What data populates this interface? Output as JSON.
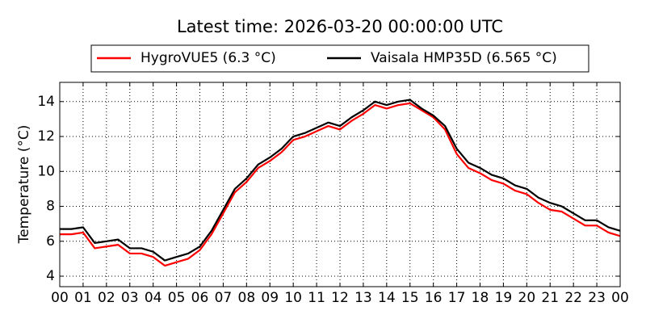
{
  "chart_data": {
    "type": "line",
    "title": "Latest time: 2026-03-20 00:00:00 UTC",
    "y_label": "Temperature (°C)",
    "x": [
      0,
      0.5,
      1,
      1.5,
      2,
      2.5,
      3,
      3.5,
      4,
      4.5,
      5,
      5.5,
      6,
      6.5,
      7,
      7.5,
      8,
      8.5,
      9,
      9.5,
      10,
      10.5,
      11,
      11.5,
      12,
      12.5,
      13,
      13.5,
      14,
      14.5,
      15,
      15.5,
      16,
      16.5,
      17,
      17.5,
      18,
      18.5,
      19,
      19.5,
      20,
      20.5,
      21,
      21.5,
      22,
      22.5,
      23,
      23.5,
      24
    ],
    "series": [
      {
        "name": "HygroVUE5 (6.3 °C)",
        "color": "#ff0000",
        "values": [
          6.4,
          6.4,
          6.5,
          5.6,
          5.7,
          5.8,
          5.3,
          5.3,
          5.1,
          4.6,
          4.8,
          5.0,
          5.5,
          6.4,
          7.6,
          8.8,
          9.4,
          10.2,
          10.6,
          11.1,
          11.8,
          12.0,
          12.3,
          12.6,
          12.4,
          12.9,
          13.3,
          13.8,
          13.6,
          13.8,
          13.9,
          13.5,
          13.1,
          12.4,
          11.0,
          10.2,
          9.9,
          9.5,
          9.3,
          8.9,
          8.7,
          8.2,
          7.8,
          7.7,
          7.3,
          6.9,
          6.9,
          6.5,
          6.3
        ]
      },
      {
        "name": "Vaisala HMP35D (6.565 °C)",
        "color": "#000000",
        "values": [
          6.7,
          6.7,
          6.8,
          5.9,
          6.0,
          6.1,
          5.6,
          5.6,
          5.4,
          4.9,
          5.1,
          5.3,
          5.7,
          6.6,
          7.8,
          9.0,
          9.6,
          10.4,
          10.8,
          11.3,
          12.0,
          12.2,
          12.5,
          12.8,
          12.6,
          13.1,
          13.5,
          14.0,
          13.8,
          14.0,
          14.1,
          13.6,
          13.2,
          12.6,
          11.3,
          10.5,
          10.2,
          9.8,
          9.6,
          9.2,
          9.0,
          8.5,
          8.2,
          8.0,
          7.6,
          7.2,
          7.2,
          6.8,
          6.6
        ]
      }
    ],
    "xlim": [
      0,
      24
    ],
    "xticks": [
      {
        "value": 0,
        "label": "00"
      },
      {
        "value": 1,
        "label": "01"
      },
      {
        "value": 2,
        "label": "02"
      },
      {
        "value": 3,
        "label": "03"
      },
      {
        "value": 4,
        "label": "04"
      },
      {
        "value": 5,
        "label": "05"
      },
      {
        "value": 6,
        "label": "06"
      },
      {
        "value": 7,
        "label": "07"
      },
      {
        "value": 8,
        "label": "08"
      },
      {
        "value": 9,
        "label": "09"
      },
      {
        "value": 10,
        "label": "10"
      },
      {
        "value": 11,
        "label": "11"
      },
      {
        "value": 12,
        "label": "12"
      },
      {
        "value": 13,
        "label": "13"
      },
      {
        "value": 14,
        "label": "14"
      },
      {
        "value": 15,
        "label": "15"
      },
      {
        "value": 16,
        "label": "16"
      },
      {
        "value": 17,
        "label": "17"
      },
      {
        "value": 18,
        "label": "18"
      },
      {
        "value": 19,
        "label": "19"
      },
      {
        "value": 20,
        "label": "20"
      },
      {
        "value": 21,
        "label": "21"
      },
      {
        "value": 22,
        "label": "22"
      },
      {
        "value": 23,
        "label": "23"
      },
      {
        "value": 24,
        "label": "00"
      }
    ],
    "ylim": [
      3.4,
      15.1
    ],
    "yticks": [
      4,
      6,
      8,
      10,
      12,
      14
    ],
    "grid": true,
    "legend": "top"
  }
}
